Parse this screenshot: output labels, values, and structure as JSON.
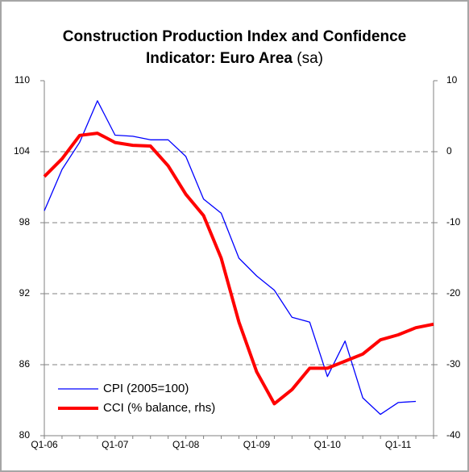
{
  "chart_data": {
    "type": "line",
    "title_lines": [
      "Construction Production Index and Confidence",
      "Indicator: Euro Area"
    ],
    "title_note": "(sa)",
    "categories": [
      "Q1-06",
      null,
      null,
      null,
      "Q1-07",
      null,
      null,
      null,
      "Q1-08",
      null,
      null,
      null,
      "Q1-09",
      null,
      null,
      null,
      "Q1-10",
      null,
      null,
      null,
      "Q1-11",
      null,
      null
    ],
    "series": [
      {
        "name": "CPI (2005=100)",
        "color": "#0000ff",
        "width": 1.3,
        "values": [
          99,
          102.5,
          104.8,
          108.3,
          105.4,
          105.3,
          105,
          105,
          103.6,
          100,
          98.8,
          95,
          93.5,
          92.3,
          90,
          89.6,
          85,
          88,
          83.2,
          81.8,
          82.8,
          82.9,
          null
        ]
      },
      {
        "name": "CCI (% balance, rhs)",
        "color": "#ff0000",
        "width": 4,
        "axis": "y2",
        "values": [
          -3.5,
          -1,
          2.3,
          2.6,
          1.3,
          0.9,
          0.8,
          -2,
          -6,
          -9,
          -15,
          -24,
          -31,
          -35.5,
          -33.5,
          -30.5,
          -30.5,
          -29.5,
          -28.5,
          -26.5,
          -25.8,
          -24.8,
          -24.3
        ]
      }
    ],
    "ylim": [
      80,
      110
    ],
    "yticks": [
      80,
      86,
      92,
      98,
      104,
      110
    ],
    "y2lim": [
      -40,
      10
    ],
    "y2ticks": [
      -40,
      -30,
      -20,
      -10,
      0,
      10
    ],
    "grid": true,
    "legend": "lower left"
  }
}
